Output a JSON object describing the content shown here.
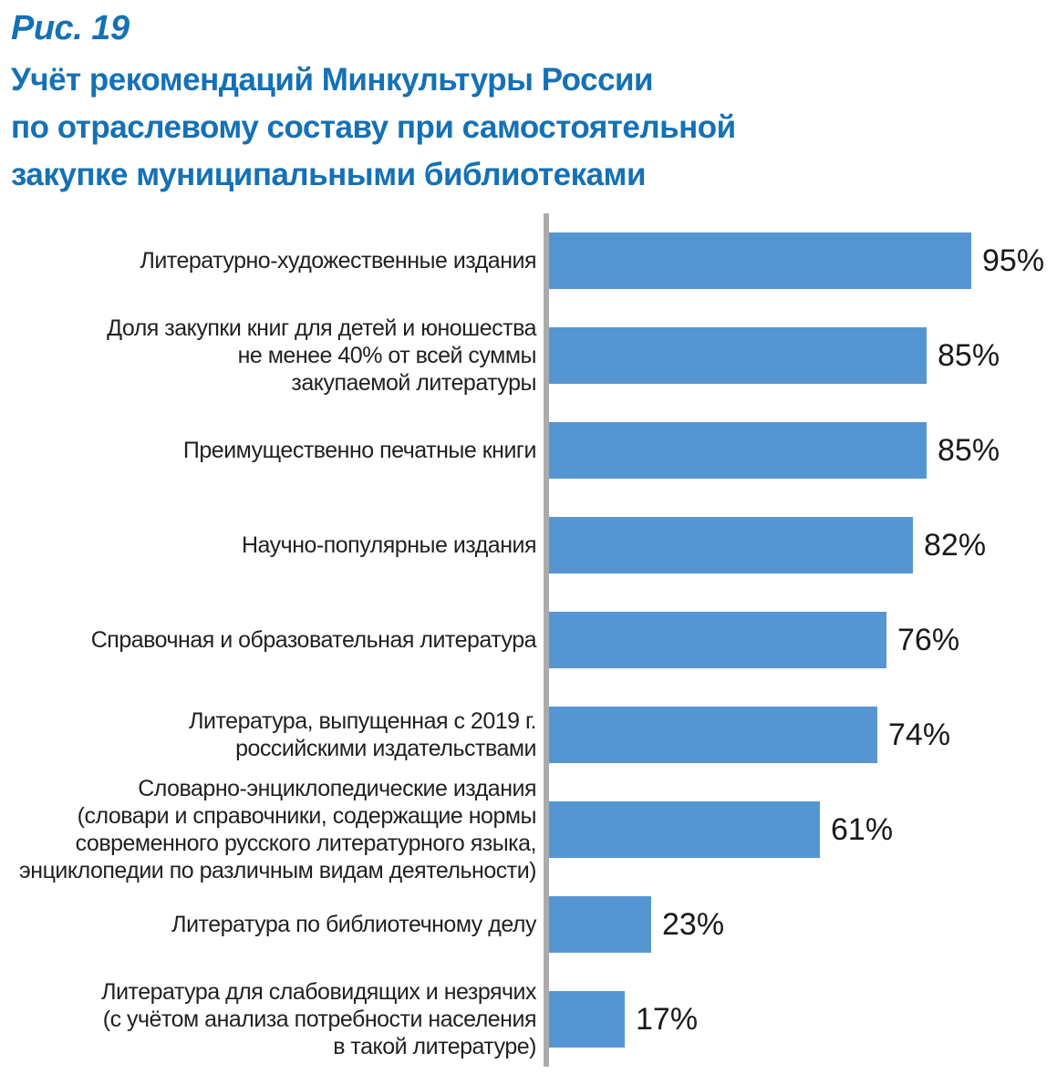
{
  "figure": {
    "fig_label": "Рис. 19",
    "title_lines": [
      "Учёт рекомендаций Минкультуры России",
      "по отраслевому составу при самостоятельной",
      "закупке муниципальными библиотеками"
    ]
  },
  "colors": {
    "title_blue": "#1571b5",
    "bar_blue": "#5596d2",
    "axis_gray": "#ababab",
    "label_text": "#231f20",
    "value_text": "#1a1a1a"
  },
  "chart_data": {
    "type": "bar",
    "orientation": "horizontal",
    "title": "Учёт рекомендаций Минкультуры России по отраслевому составу при самостоятельной закупке муниципальными библиотеками",
    "xlabel": "",
    "ylabel": "",
    "unit": "%",
    "xlim": [
      0,
      100
    ],
    "grid": false,
    "legend": false,
    "value_label_position": "right-of-bar",
    "categories": [
      "Литературно-художественные издания",
      "Доля закупки книг для детей и юношества\nне менее 40% от всей суммы\nзакупаемой литературы",
      "Преимущественно печатные книги",
      "Научно-популярные издания",
      "Справочная и образовательная литература",
      "Литература, выпущенная с 2019 г.\nроссийскими издательствами",
      "Словарно-энциклопедические издания\n(словари и справочники, содержащие нормы\nсовременного русского литературного языка,\nэнциклопедии по различным видам деятельности)",
      "Литература по библиотечному делу",
      "Литература для слабовидящих и незрячих\n(с учётом анализа потребности населения\nв такой литературе)"
    ],
    "values": [
      95,
      85,
      85,
      82,
      76,
      74,
      61,
      23,
      17
    ],
    "value_labels": [
      "95%",
      "85%",
      "85%",
      "82%",
      "76%",
      "74%",
      "61%",
      "23%",
      "17%"
    ]
  }
}
